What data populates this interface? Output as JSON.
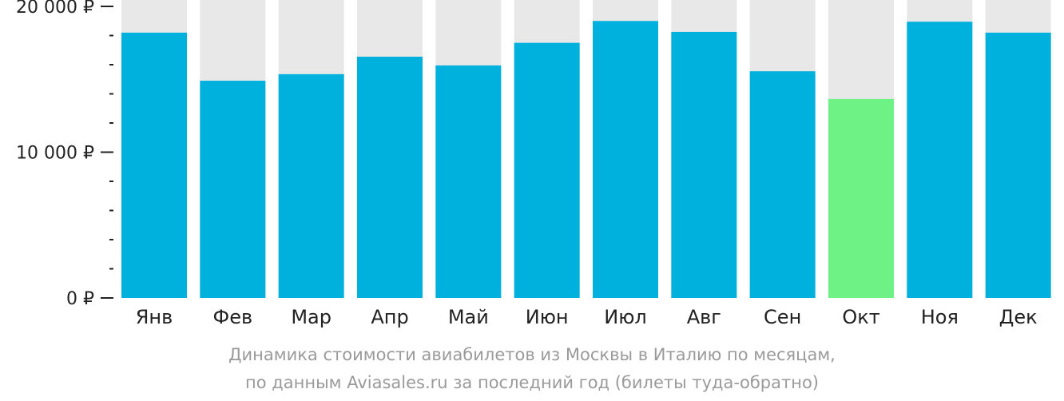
{
  "chart_data": {
    "type": "bar",
    "categories": [
      "Янв",
      "Фев",
      "Мар",
      "Апр",
      "Май",
      "Июн",
      "Июл",
      "Авг",
      "Сен",
      "Окт",
      "Ноя",
      "Дек"
    ],
    "values": [
      18200,
      14900,
      15350,
      16550,
      15950,
      17500,
      19000,
      18250,
      15550,
      13650,
      18950,
      18200
    ],
    "ylim": [
      0,
      20000
    ],
    "yticks": [
      {
        "value": 0,
        "label": "0 ₽"
      },
      {
        "value": 10000,
        "label": "10 000 ₽"
      },
      {
        "value": 20000,
        "label": "20 000 ₽"
      }
    ],
    "minor_tick_step": 2000,
    "highlight_category": "Окт",
    "colors": {
      "bar": "#00b0dd",
      "highlight": "#6ef285",
      "background_bar": "#e8e8e8",
      "axis": "#222222"
    },
    "caption": [
      "Динамика стоимости авиабилетов из Москвы в Италию по месяцам,",
      "по данным Aviasales.ru за последний год (билеты туда-обратно)"
    ]
  }
}
